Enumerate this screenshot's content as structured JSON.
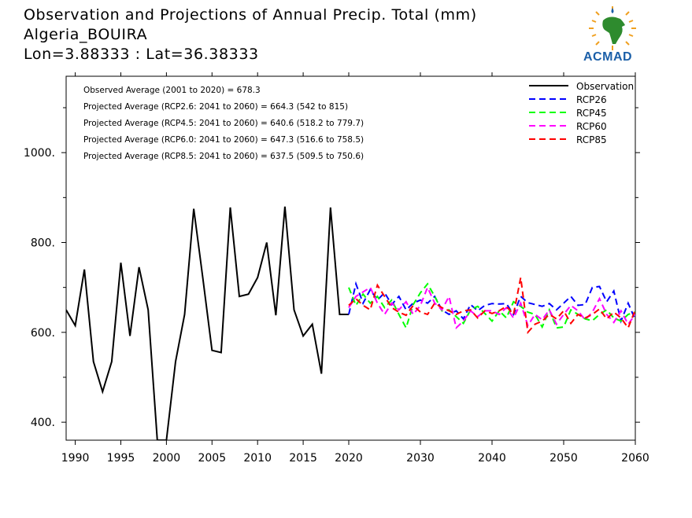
{
  "header": {
    "title": "Observation and Projections of Annual Precip. Total (mm)",
    "location": "Algeria_BOUIRA",
    "coords": "Lon=3.88333 : Lat=36.38333"
  },
  "logo": {
    "text": "ACMAD"
  },
  "colors": {
    "Observation": "#000000",
    "RCP26": "#0000ff",
    "RCP45": "#00ff00",
    "RCP60": "#ff00ff",
    "RCP85": "#ff0000"
  },
  "chart_data": {
    "type": "line",
    "title": "Observation and Projections of Annual Precip. Total (mm)",
    "xlim": [
      1989,
      2060
    ],
    "ylim": [
      360,
      1170
    ],
    "x_ticks": [
      1990,
      1995,
      2000,
      2005,
      2010,
      2015,
      2020,
      2030,
      2040,
      2050,
      2060
    ],
    "y_ticks": [
      400,
      600,
      800,
      1000
    ],
    "y_tick_labels": [
      "400.",
      "600.",
      "800.",
      "1000."
    ],
    "grid": false,
    "legend_position": "top-right",
    "annotations": [
      "Observed Average (2001 to 2020) = 678.3",
      "Projected Average (RCP2.6: 2041 to 2060) = 664.3 (542 to 815)",
      "Projected Average (RCP4.5: 2041 to 2060) = 640.6 (518.2 to 779.7)",
      "Projected Average (RCP6.0: 2041 to 2060) = 647.3 (516.6 to 758.5)",
      "Projected Average (RCP8.5: 2041 to 2060) = 637.5 (509.5 to 750.6)"
    ],
    "series": [
      {
        "name": "Observation",
        "style": "solid",
        "x": [
          1989,
          1990,
          1991,
          1992,
          1993,
          1994,
          1995,
          1996,
          1997,
          1998,
          1999,
          2000,
          2001,
          2002,
          2003,
          2004,
          2005,
          2006,
          2007,
          2008,
          2009,
          2010,
          2011,
          2012,
          2013,
          2014,
          2015,
          2016,
          2017,
          2018,
          2019,
          2020
        ],
        "values": [
          650,
          615,
          740,
          535,
          468,
          535,
          755,
          592,
          745,
          650,
          360,
          360,
          535,
          640,
          875,
          720,
          560,
          555,
          878,
          680,
          685,
          722,
          800,
          638,
          880,
          650,
          592,
          618,
          508,
          878,
          640,
          640
        ]
      },
      {
        "name": "RCP26",
        "style": "dashed",
        "x": [
          2020,
          2021,
          2022,
          2023,
          2024,
          2025,
          2026,
          2027,
          2028,
          2029,
          2030,
          2031,
          2032,
          2033,
          2034,
          2035,
          2036,
          2037,
          2038,
          2039,
          2040,
          2041,
          2042,
          2043,
          2044,
          2045,
          2046,
          2047,
          2048,
          2049,
          2050,
          2051,
          2052,
          2053,
          2054,
          2055,
          2056,
          2057,
          2058,
          2059,
          2060
        ],
        "values": [
          640,
          708,
          665,
          695,
          672,
          688,
          662,
          680,
          650,
          665,
          672,
          665,
          680,
          650,
          640,
          648,
          630,
          662,
          648,
          660,
          664,
          663,
          664,
          640,
          680,
          666,
          662,
          658,
          664,
          650,
          665,
          680,
          660,
          662,
          700,
          702,
          668,
          692,
          625,
          665,
          628
        ]
      },
      {
        "name": "RCP45",
        "style": "dashed",
        "x": [
          2020,
          2021,
          2022,
          2023,
          2024,
          2025,
          2026,
          2027,
          2028,
          2029,
          2030,
          2031,
          2032,
          2033,
          2034,
          2035,
          2036,
          2037,
          2038,
          2039,
          2040,
          2041,
          2042,
          2043,
          2044,
          2045,
          2046,
          2047,
          2048,
          2049,
          2050,
          2051,
          2052,
          2053,
          2054,
          2055,
          2056,
          2057,
          2058,
          2059,
          2060
        ],
        "values": [
          700,
          660,
          685,
          665,
          680,
          655,
          672,
          640,
          610,
          662,
          688,
          708,
          680,
          648,
          650,
          635,
          620,
          650,
          658,
          642,
          625,
          648,
          632,
          668,
          658,
          645,
          640,
          612,
          650,
          610,
          612,
          650,
          640,
          630,
          626,
          640,
          650,
          632,
          625,
          640,
          645
        ]
      },
      {
        "name": "RCP60",
        "style": "dashed",
        "x": [
          2020,
          2021,
          2022,
          2023,
          2024,
          2025,
          2026,
          2027,
          2028,
          2029,
          2030,
          2031,
          2032,
          2033,
          2034,
          2035,
          2036,
          2037,
          2038,
          2039,
          2040,
          2041,
          2042,
          2043,
          2044,
          2045,
          2046,
          2047,
          2048,
          2049,
          2050,
          2051,
          2052,
          2053,
          2054,
          2055,
          2056,
          2057,
          2058,
          2059,
          2060
        ],
        "values": [
          655,
          680,
          690,
          700,
          665,
          640,
          665,
          650,
          668,
          640,
          660,
          700,
          665,
          650,
          680,
          610,
          625,
          648,
          635,
          648,
          648,
          640,
          655,
          632,
          665,
          615,
          640,
          628,
          650,
          618,
          640,
          660,
          648,
          628,
          645,
          675,
          640,
          622,
          648,
          618,
          640
        ]
      },
      {
        "name": "RCP85",
        "style": "dashed",
        "x": [
          2020,
          2021,
          2022,
          2023,
          2024,
          2025,
          2026,
          2027,
          2028,
          2029,
          2030,
          2031,
          2032,
          2033,
          2034,
          2035,
          2036,
          2037,
          2038,
          2039,
          2040,
          2041,
          2042,
          2043,
          2044,
          2045,
          2046,
          2047,
          2048,
          2049,
          2050,
          2051,
          2052,
          2053,
          2054,
          2055,
          2056,
          2057,
          2058,
          2059,
          2060
        ],
        "values": [
          660,
          675,
          660,
          650,
          705,
          680,
          655,
          645,
          638,
          660,
          645,
          640,
          665,
          655,
          648,
          640,
          648,
          650,
          632,
          648,
          642,
          648,
          658,
          640,
          722,
          600,
          618,
          625,
          640,
          630,
          648,
          620,
          640,
          632,
          640,
          652,
          630,
          645,
          632,
          610,
          650
        ]
      }
    ]
  }
}
